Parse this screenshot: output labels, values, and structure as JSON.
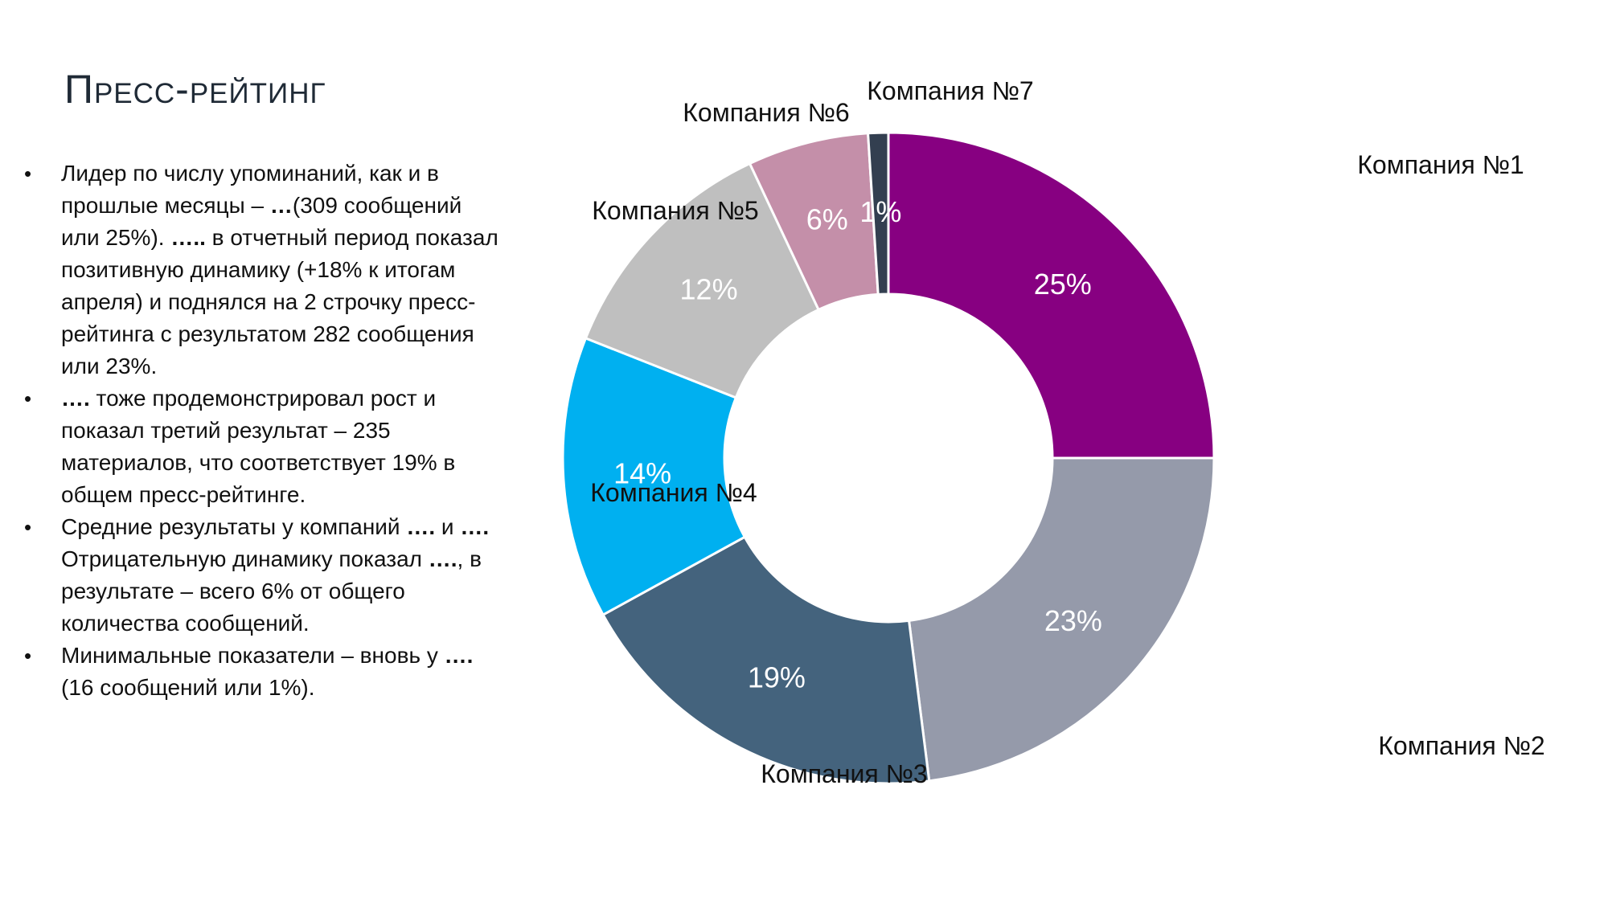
{
  "page": {
    "title": "Пресс-рейтинг",
    "bullets": [
      {
        "parts": [
          {
            "text": "Лидер по числу упоминаний, как и в прошлые месяцы – ",
            "bold": false
          },
          {
            "text": "…",
            "bold": true
          },
          {
            "text": "(309 сообщений или 25%). ",
            "bold": false
          },
          {
            "text": "…..",
            "bold": true
          },
          {
            "text": " в отчетный период показал позитивную динамику (+18% к итогам апреля) и поднялся на 2 строчку пресс-рейтинга с результатом 282 сообщения или 23%.",
            "bold": false
          }
        ]
      },
      {
        "parts": [
          {
            "text": "….",
            "bold": true
          },
          {
            "text": " тоже продемонстрировал рост и показал третий результат – 235 материалов, что соответствует 19% в общем пресс-рейтинге.",
            "bold": false
          }
        ]
      },
      {
        "parts": [
          {
            "text": "Средние результаты у компаний ",
            "bold": false
          },
          {
            "text": "….",
            "bold": true
          },
          {
            "text": " и ",
            "bold": false
          },
          {
            "text": "….",
            "bold": true
          },
          {
            "text": " Отрицательную динамику показал ",
            "bold": false
          },
          {
            "text": "….",
            "bold": true
          },
          {
            "text": ", в результате – всего 6% от общего количества сообщений.",
            "bold": false
          }
        ]
      },
      {
        "parts": [
          {
            "text": "Минимальные показатели – вновь у ",
            "bold": false
          },
          {
            "text": "….",
            "bold": true
          },
          {
            "text": "(16 сообщений или 1%).",
            "bold": false
          }
        ]
      }
    ]
  },
  "chart_data": {
    "type": "pie",
    "variant": "donut",
    "direction": "clockwise",
    "start": "top",
    "categories": [
      "Компания №1",
      "Компания №2",
      "Компания №3",
      "Компания №4",
      "Компания №5",
      "Компания №6",
      "Компания №7"
    ],
    "values": [
      25,
      23,
      19,
      14,
      12,
      6,
      1
    ],
    "data_labels": [
      "25%",
      "23%",
      "19%",
      "14%",
      "12%",
      "6%",
      "1%"
    ],
    "colors": [
      "#870081",
      "#959aaa",
      "#44637d",
      "#00b0f0",
      "#bfbfbf",
      "#c48fa9",
      "#333f50"
    ],
    "title": "",
    "legend": "labels-outside"
  }
}
